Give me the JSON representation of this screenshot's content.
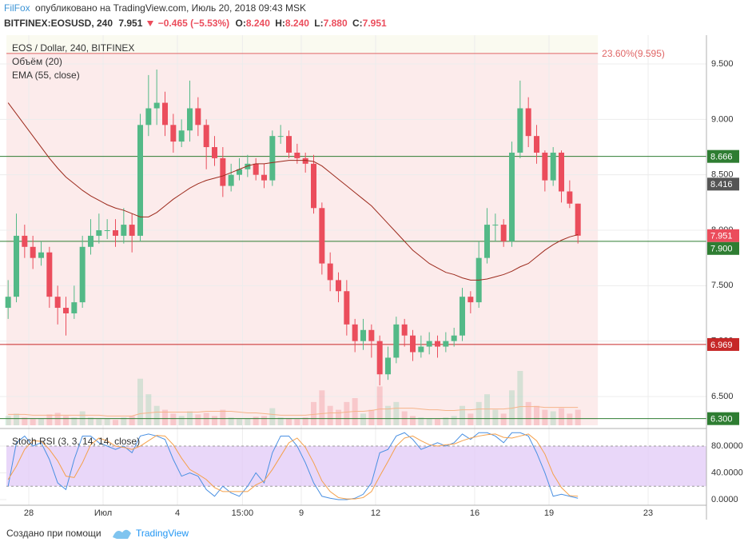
{
  "header": {
    "author": "FilFox",
    "published": "опубликовано на TradingView.com, Июль 20, 2018 09:43 MSK",
    "symbol": "BITFINEX:EOSUSD, 240",
    "change": "−0.465 (−5.53%)",
    "ohlc": [
      {
        "label": "O:",
        "value": "8.240"
      },
      {
        "label": "H:",
        "value": "8.240"
      },
      {
        "label": "L:",
        "value": "7.880"
      },
      {
        "label": "C:",
        "value": "7.951"
      }
    ]
  },
  "chart_data": [
    {
      "type": "candlestick",
      "title": "EOS / Dollar, 240, BITFINEX",
      "grid": true,
      "x": [
        -20,
        -12,
        -4,
        4,
        12,
        20,
        28,
        36,
        44,
        52,
        60,
        68,
        76,
        84,
        92,
        100,
        108,
        116,
        124,
        132,
        140,
        148,
        156,
        164,
        172,
        180,
        188,
        196,
        204,
        212,
        220,
        228,
        236,
        244,
        252,
        260,
        268,
        276,
        284,
        292,
        300,
        308,
        316,
        324,
        332,
        340,
        348,
        356,
        364,
        372,
        380,
        388,
        396,
        404,
        412,
        420,
        428,
        436,
        444,
        452,
        460,
        468,
        476,
        484,
        492,
        500,
        508,
        516,
        524,
        532
      ],
      "xlim": [
        -27.87,
        656.5
      ],
      "xticks": [
        {
          "value": 0,
          "label": "28"
        },
        {
          "value": 72,
          "label": "Июл"
        },
        {
          "value": 144,
          "label": "4"
        },
        {
          "value": 207,
          "label": "15:00"
        },
        {
          "value": 264,
          "label": "9"
        },
        {
          "value": 336,
          "label": "12"
        },
        {
          "value": 432,
          "label": "16"
        },
        {
          "value": 504,
          "label": "19"
        },
        {
          "value": 600,
          "label": "23"
        }
      ],
      "ylim": [
        6.24,
        9.76
      ],
      "yticks": [
        {
          "value": 6.5,
          "label": "6.500"
        },
        {
          "value": 7,
          "label": "7.000"
        },
        {
          "value": 7.5,
          "label": "7.500"
        },
        {
          "value": 8,
          "label": "8.000"
        },
        {
          "value": 8.5,
          "label": "8.500"
        },
        {
          "value": 9,
          "label": "9.000"
        },
        {
          "value": 9.5,
          "label": "9.500"
        }
      ],
      "ohlc": {
        "up_color": "#53b987",
        "down_color": "#eb4d5c",
        "open": [
          7.3,
          7.4,
          7.95,
          7.85,
          7.75,
          7.8,
          7.4,
          7.3,
          7.25,
          7.35,
          7.85,
          7.95,
          8.0,
          8.0,
          7.95,
          8.05,
          7.95,
          8.95,
          9.1,
          9.15,
          8.95,
          8.8,
          8.9,
          9.1,
          8.95,
          8.75,
          8.65,
          8.4,
          8.5,
          8.55,
          8.6,
          8.5,
          8.45,
          8.85,
          8.85,
          8.7,
          8.65,
          8.6,
          8.2,
          7.7,
          7.55,
          7.45,
          7.15,
          7.0,
          7.1,
          7.0,
          6.7,
          6.85,
          7.15,
          7.05,
          6.9,
          6.95,
          7.0,
          6.95,
          7.0,
          7.05,
          7.4,
          7.35,
          7.75,
          8.05,
          8.05,
          7.9,
          8.7,
          9.1,
          8.85,
          8.7,
          8.45,
          8.7,
          8.35,
          8.24
        ],
        "high": [
          7.55,
          8.15,
          8.05,
          7.95,
          7.9,
          7.85,
          7.5,
          7.4,
          7.5,
          7.95,
          8.1,
          8.15,
          8.1,
          8.1,
          8.2,
          8.15,
          9.05,
          9.4,
          9.45,
          9.25,
          9.05,
          9.0,
          9.35,
          9.2,
          9.0,
          8.85,
          8.75,
          8.6,
          8.65,
          8.68,
          8.65,
          8.6,
          8.9,
          8.95,
          8.9,
          8.78,
          8.7,
          8.68,
          8.25,
          7.8,
          7.62,
          7.55,
          7.2,
          7.2,
          7.15,
          7.05,
          6.95,
          7.22,
          7.2,
          7.1,
          7.05,
          7.08,
          7.05,
          7.08,
          7.12,
          7.48,
          7.45,
          7.9,
          8.2,
          8.15,
          8.1,
          8.8,
          9.35,
          9.2,
          8.95,
          8.72,
          8.75,
          8.72,
          8.45,
          8.24
        ],
        "low": [
          7.2,
          7.35,
          7.75,
          7.65,
          7.68,
          7.3,
          7.15,
          7.05,
          7.2,
          7.3,
          7.78,
          7.88,
          7.92,
          7.85,
          7.88,
          7.8,
          7.9,
          8.85,
          8.95,
          8.85,
          8.7,
          8.75,
          8.8,
          8.85,
          8.55,
          8.58,
          8.3,
          8.35,
          8.45,
          8.48,
          8.45,
          8.38,
          8.4,
          8.78,
          8.65,
          8.6,
          8.52,
          8.15,
          7.6,
          7.45,
          7.35,
          7.05,
          6.9,
          6.92,
          6.85,
          6.6,
          6.65,
          6.8,
          6.95,
          6.82,
          6.85,
          6.88,
          6.85,
          6.9,
          6.95,
          7.0,
          7.25,
          7.3,
          7.7,
          7.9,
          7.85,
          7.85,
          8.65,
          8.75,
          8.6,
          8.35,
          8.4,
          8.25,
          8.2,
          7.88
        ],
        "close": [
          7.4,
          7.95,
          7.85,
          7.75,
          7.8,
          7.4,
          7.3,
          7.25,
          7.35,
          7.85,
          7.95,
          8.0,
          8.0,
          7.95,
          8.05,
          7.95,
          8.95,
          9.1,
          9.15,
          8.95,
          8.8,
          8.9,
          9.1,
          8.95,
          8.75,
          8.65,
          8.4,
          8.5,
          8.55,
          8.6,
          8.5,
          8.45,
          8.85,
          8.85,
          8.7,
          8.65,
          8.6,
          8.2,
          7.7,
          7.55,
          7.45,
          7.15,
          7.0,
          7.1,
          7.0,
          6.7,
          6.85,
          7.15,
          7.05,
          6.9,
          6.95,
          7.0,
          6.95,
          7.0,
          7.05,
          7.4,
          7.35,
          7.75,
          8.05,
          8.05,
          7.9,
          8.7,
          9.1,
          8.85,
          8.7,
          8.45,
          8.7,
          8.35,
          8.24,
          7.951
        ]
      },
      "volume": {
        "name": "Объём (20)",
        "ma_color": "#f5b48a",
        "values": [
          12,
          15,
          10,
          8,
          9,
          14,
          16,
          12,
          10,
          18,
          10,
          8,
          9,
          7,
          10,
          12,
          60,
          40,
          25,
          20,
          15,
          12,
          18,
          14,
          16,
          12,
          20,
          10,
          8,
          9,
          11,
          12,
          22,
          10,
          9,
          8,
          10,
          30,
          45,
          25,
          20,
          30,
          35,
          15,
          20,
          50,
          25,
          30,
          18,
          12,
          10,
          9,
          8,
          10,
          12,
          25,
          15,
          30,
          40,
          20,
          15,
          45,
          70,
          30,
          25,
          20,
          18,
          22,
          15,
          20
        ],
        "ma": [
          14,
          14,
          14,
          13,
          13,
          13,
          13,
          13,
          13,
          13,
          13,
          13,
          12,
          12,
          12,
          12,
          15,
          16,
          17,
          17,
          17,
          17,
          17,
          17,
          18,
          18,
          18,
          18,
          17,
          16,
          16,
          15,
          14,
          13,
          13,
          13,
          13,
          14,
          15,
          16,
          16,
          17,
          18,
          18,
          19,
          21,
          21,
          22,
          22,
          22,
          21,
          20,
          20,
          19,
          19,
          20,
          20,
          21,
          21,
          21,
          21,
          22,
          24,
          24,
          24,
          23,
          23,
          23,
          23,
          23
        ]
      },
      "ema": {
        "name": "EMA (55, close)",
        "color": "#9c2a1c",
        "values": [
          9.15,
          9.05,
          8.95,
          8.85,
          8.75,
          8.65,
          8.56,
          8.48,
          8.42,
          8.36,
          8.31,
          8.27,
          8.23,
          8.2,
          8.18,
          8.15,
          8.12,
          8.12,
          8.16,
          8.22,
          8.28,
          8.33,
          8.38,
          8.42,
          8.45,
          8.47,
          8.49,
          8.52,
          8.55,
          8.58,
          8.6,
          8.6,
          8.61,
          8.62,
          8.63,
          8.63,
          8.63,
          8.62,
          8.58,
          8.52,
          8.46,
          8.4,
          8.34,
          8.28,
          8.22,
          8.14,
          8.06,
          7.98,
          7.9,
          7.82,
          7.76,
          7.7,
          7.66,
          7.62,
          7.6,
          7.57,
          7.55,
          7.55,
          7.56,
          7.58,
          7.6,
          7.63,
          7.67,
          7.7,
          7.76,
          7.82,
          7.87,
          7.91,
          7.94,
          7.96
        ]
      },
      "fib": {
        "value": 9.595,
        "label": "23.60%(9.595)",
        "color": "#e06666"
      },
      "levels": [
        {
          "value": 8.666,
          "label": "8.666",
          "color": "#2e7d32"
        },
        {
          "value": 7.9,
          "label": "7.900",
          "color": "#2e7d32"
        },
        {
          "value": 6.969,
          "label": "6.969",
          "color": "#c62828"
        },
        {
          "value": 6.3,
          "label": "6.300",
          "color": "#2e7d32"
        }
      ],
      "price_markers": [
        {
          "value": 8.416,
          "label": "8.416",
          "color": "#555555"
        }
      ]
    },
    {
      "type": "line",
      "title": "Stoch RSI (3, 3, 14, 14, close)",
      "grid": true,
      "ylim": [
        -8.4,
        101.5
      ],
      "yticks": [
        {
          "value": 0,
          "label": "0.0000"
        },
        {
          "value": 40,
          "label": "40.0000"
        },
        {
          "value": 80,
          "label": "80.0000"
        }
      ],
      "bands": [
        20,
        80
      ],
      "band_color": "#e3cdf7",
      "series": [
        {
          "color": "#4a90e2",
          "values": [
            20,
            85,
            95,
            80,
            85,
            60,
            25,
            15,
            60,
            95,
            95,
            85,
            80,
            75,
            80,
            70,
            95,
            98,
            95,
            90,
            60,
            35,
            40,
            35,
            15,
            5,
            20,
            10,
            5,
            20,
            40,
            25,
            70,
            95,
            95,
            80,
            55,
            25,
            5,
            2,
            0,
            0,
            2,
            8,
            25,
            70,
            75,
            95,
            100,
            90,
            75,
            80,
            85,
            80,
            85,
            98,
            90,
            100,
            100,
            95,
            85,
            100,
            100,
            95,
            70,
            40,
            5,
            8,
            5,
            2
          ]
        },
        {
          "color": "#f5a04a",
          "values": [
            30,
            50,
            75,
            88,
            87,
            75,
            58,
            35,
            33,
            55,
            82,
            92,
            88,
            80,
            78,
            75,
            80,
            88,
            96,
            95,
            82,
            62,
            45,
            38,
            30,
            18,
            12,
            12,
            12,
            12,
            22,
            28,
            45,
            65,
            85,
            92,
            78,
            55,
            28,
            12,
            3,
            1,
            1,
            3,
            12,
            35,
            57,
            80,
            92,
            95,
            88,
            82,
            80,
            82,
            83,
            88,
            92,
            95,
            97,
            98,
            93,
            92,
            95,
            98,
            88,
            68,
            38,
            18,
            6,
            5
          ]
        }
      ]
    }
  ],
  "footer": {
    "text": "Создано при помощи",
    "brand": "TradingView"
  }
}
